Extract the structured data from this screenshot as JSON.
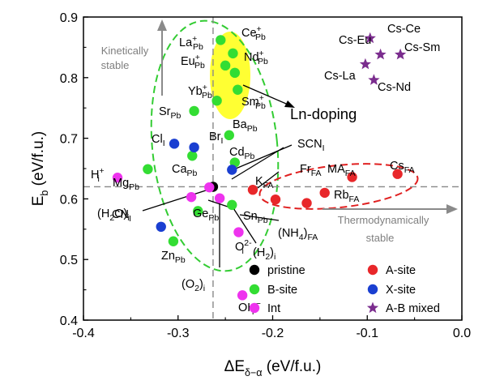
{
  "chart_data": {
    "type": "scatter",
    "xlabel": "ΔE",
    "xlabel_sub": "δ−α",
    "xlabel_unit": " (eV/f.u.)",
    "ylabel": "E",
    "ylabel_sub": "b",
    "ylabel_unit": " (eV/f.u.)",
    "xlim": [
      -0.4,
      0.0
    ],
    "ylim": [
      0.4,
      0.9
    ],
    "xticks": [
      "-0.4",
      "-0.3",
      "-0.2",
      "-0.1",
      "0.0"
    ],
    "yticks": [
      "0.4",
      "0.5",
      "0.6",
      "0.7",
      "0.8",
      "0.9"
    ],
    "reference_lines": {
      "x": -0.263,
      "y": 0.62
    },
    "colors": {
      "pristine": "#000000",
      "B-site": "#33dd33",
      "A-site": "#e8272a",
      "X-site": "#1a3fd1",
      "Int": "#ee33ee",
      "A-B mixed": "#7b2d8e",
      "ln_highlight": "#ffff33",
      "kinetic_ellipse": "#33cc33",
      "thermo_ellipse": "#e02020",
      "guide": "#888888"
    },
    "legend": [
      {
        "label": "pristine",
        "series": "pristine",
        "marker": "circle"
      },
      {
        "label": "B-site",
        "series": "B-site",
        "marker": "circle"
      },
      {
        "label": "A-site",
        "series": "A-site",
        "marker": "circle"
      },
      {
        "label": "X-site",
        "series": "X-site",
        "marker": "circle"
      },
      {
        "label": "A-B mixed",
        "series": "A-B mixed",
        "marker": "star"
      },
      {
        "label": "Int",
        "series": "Int",
        "marker": "circle"
      }
    ],
    "annotations": {
      "kinetic": [
        "Kinetically",
        "stable"
      ],
      "thermo": [
        "Thermodynamically",
        "stable"
      ],
      "ln_doping": "Ln-doping"
    },
    "points": [
      {
        "series": "pristine",
        "x": -0.263,
        "y": 0.62,
        "label": "",
        "sup": "",
        "sub": ""
      },
      {
        "series": "B-site",
        "x": -0.255,
        "y": 0.862,
        "label": "La",
        "sup": "+",
        "sub": "Pb"
      },
      {
        "series": "B-site",
        "x": -0.242,
        "y": 0.84,
        "label": "Ce",
        "sup": "+",
        "sub": "Pb"
      },
      {
        "series": "B-site",
        "x": -0.25,
        "y": 0.82,
        "label": "Eu",
        "sup": "+",
        "sub": "Pb"
      },
      {
        "series": "B-site",
        "x": -0.24,
        "y": 0.808,
        "label": "Nd",
        "sup": "+",
        "sub": "Pb"
      },
      {
        "series": "B-site",
        "x": -0.237,
        "y": 0.78,
        "label": "Sm",
        "sup": "+",
        "sub": "Pb"
      },
      {
        "series": "B-site",
        "x": -0.259,
        "y": 0.762,
        "label": "Yb",
        "sup": "+",
        "sub": "Pb"
      },
      {
        "series": "B-site",
        "x": -0.283,
        "y": 0.745,
        "label": "Sr",
        "sup": "",
        "sub": "Pb"
      },
      {
        "series": "B-site",
        "x": -0.246,
        "y": 0.705,
        "label": "Ba",
        "sup": "",
        "sub": "Pb"
      },
      {
        "series": "B-site",
        "x": -0.285,
        "y": 0.671,
        "label": "Ca",
        "sup": "",
        "sub": "Pb"
      },
      {
        "series": "B-site",
        "x": -0.24,
        "y": 0.66,
        "label": "Cd",
        "sup": "",
        "sub": "Pb"
      },
      {
        "series": "B-site",
        "x": -0.332,
        "y": 0.649,
        "label": "Mg",
        "sup": "",
        "sub": "Pb"
      },
      {
        "series": "B-site",
        "x": -0.279,
        "y": 0.58,
        "label": "Ge",
        "sup": "",
        "sub": "Pb"
      },
      {
        "series": "B-site",
        "x": -0.243,
        "y": 0.59,
        "label": "Sn",
        "sup": "",
        "sub": "Pb"
      },
      {
        "series": "B-site",
        "x": -0.305,
        "y": 0.53,
        "label": "Zn",
        "sup": "",
        "sub": "Pb"
      },
      {
        "series": "X-site",
        "x": -0.283,
        "y": 0.685,
        "label": "Br",
        "sup": "",
        "sub": "I"
      },
      {
        "series": "X-site",
        "x": -0.304,
        "y": 0.691,
        "label": "Cl",
        "sup": "",
        "sub": "I"
      },
      {
        "series": "X-site",
        "x": -0.243,
        "y": 0.648,
        "label": "SCN",
        "sup": "",
        "sub": "I"
      },
      {
        "series": "X-site",
        "x": -0.318,
        "y": 0.554,
        "label": "CN",
        "sup": "",
        "sub": "I"
      },
      {
        "series": "A-site",
        "x": -0.068,
        "y": 0.641,
        "label": "Cs",
        "sup": "",
        "sub": "FA"
      },
      {
        "series": "A-site",
        "x": -0.116,
        "y": 0.636,
        "label": "MA",
        "sup": "",
        "sub": "FA"
      },
      {
        "series": "A-site",
        "x": -0.221,
        "y": 0.615,
        "label": "K",
        "sup": "",
        "sub": "FA"
      },
      {
        "series": "A-site",
        "x": -0.145,
        "y": 0.61,
        "label": "Rb",
        "sup": "",
        "sub": "FA"
      },
      {
        "series": "A-site",
        "x": -0.197,
        "y": 0.599,
        "label": "(NH",
        "sup": "",
        "sub": "FA"
      },
      {
        "series": "A-site",
        "x": -0.164,
        "y": 0.593,
        "label": "Fr",
        "sup": "",
        "sub": "FA"
      },
      {
        "series": "Int",
        "x": -0.364,
        "y": 0.635,
        "label": "H",
        "sup": "+",
        "sub": "i"
      },
      {
        "series": "Int",
        "x": -0.267,
        "y": 0.619,
        "label": "(O",
        "sup": "",
        "sub": "i"
      },
      {
        "series": "Int",
        "x": -0.286,
        "y": 0.603,
        "label": "(H",
        "sup": "",
        "sub": "i"
      },
      {
        "series": "Int",
        "x": -0.256,
        "y": 0.601,
        "label": "(H",
        "sup": "",
        "sub": "i"
      },
      {
        "series": "Int",
        "x": -0.236,
        "y": 0.545,
        "label": "O",
        "sup": "2-",
        "sub": "i"
      },
      {
        "series": "Int",
        "x": -0.232,
        "y": 0.441,
        "label": "OH",
        "sup": "−",
        "sub": "i"
      },
      {
        "series": "A-B mixed",
        "x": -0.097,
        "y": 0.865,
        "label": "Cs-Eu",
        "sup": "",
        "sub": ""
      },
      {
        "series": "A-B mixed",
        "x": -0.086,
        "y": 0.838,
        "label": "Cs-Ce",
        "sup": "",
        "sub": ""
      },
      {
        "series": "A-B mixed",
        "x": -0.065,
        "y": 0.838,
        "label": "Cs-Sm",
        "sup": "",
        "sub": ""
      },
      {
        "series": "A-B mixed",
        "x": -0.102,
        "y": 0.822,
        "label": "Cs-La",
        "sup": "",
        "sub": ""
      },
      {
        "series": "A-B mixed",
        "x": -0.093,
        "y": 0.796,
        "label": "Cs-Nd",
        "sup": "",
        "sub": ""
      }
    ],
    "label_texts": {
      "nh4_label": [
        "(NH",
        "4",
        ")",
        "FA"
      ],
      "o2_label": [
        "(O",
        "2",
        ")",
        "i"
      ],
      "h2o_label": [
        "(H",
        "2",
        "O)",
        "i"
      ],
      "h2_label": [
        "(H",
        "2",
        ")",
        "i"
      ]
    }
  }
}
